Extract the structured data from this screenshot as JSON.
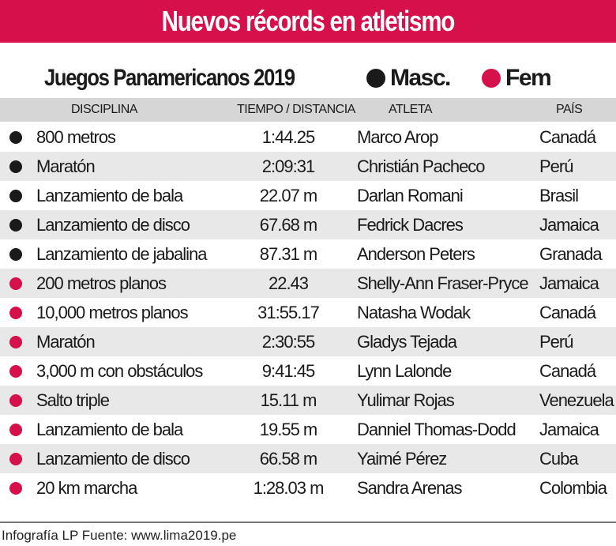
{
  "title": "Nuevos récords en atletismo",
  "subtitle": "Juegos Panamericanos 2019",
  "legend": {
    "masc": "Masc.",
    "fem": "Fem",
    "masc_color": "#1a1a1a",
    "fem_color": "#d6104a"
  },
  "headers": [
    "DISCIPLINA",
    "TIEMPO / DISTANCIA",
    "ATLETA",
    "PAÍS"
  ],
  "rows": [
    {
      "g": "m",
      "disciplina": "800 metros",
      "marca": "1:44.25",
      "atleta": "Marco Arop",
      "pais": "Canadá"
    },
    {
      "g": "m",
      "disciplina": "Maratón",
      "marca": "2:09:31",
      "atleta": "Christián Pacheco",
      "pais": "Perú"
    },
    {
      "g": "m",
      "disciplina": "Lanzamiento de bala",
      "marca": "22.07 m",
      "atleta": "Darlan Romani",
      "pais": "Brasil"
    },
    {
      "g": "m",
      "disciplina": "Lanzamiento de disco",
      "marca": "67.68 m",
      "atleta": "Fedrick Dacres",
      "pais": "Jamaica"
    },
    {
      "g": "m",
      "disciplina": "Lanzamiento de jabalina",
      "marca": "87.31 m",
      "atleta": "Anderson Peters",
      "pais": "Granada"
    },
    {
      "g": "f",
      "disciplina": "200 metros planos",
      "marca": "22.43",
      "atleta": "Shelly-Ann Fraser-Pryce",
      "pais": "Jamaica"
    },
    {
      "g": "f",
      "disciplina": "10,000 metros planos",
      "marca": "31:55.17",
      "atleta": "Natasha Wodak",
      "pais": "Canadá"
    },
    {
      "g": "f",
      "disciplina": "Maratón",
      "marca": "2:30:55",
      "atleta": "Gladys Tejada",
      "pais": "Perú"
    },
    {
      "g": "f",
      "disciplina": "3,000 m con obstáculos",
      "marca": "9:41:45",
      "atleta": "Lynn Lalonde",
      "pais": "Canadá"
    },
    {
      "g": "f",
      "disciplina": "Salto triple",
      "marca": "15.11 m",
      "atleta": "Yulimar Rojas",
      "pais": "Venezuela"
    },
    {
      "g": "f",
      "disciplina": "Lanzamiento de bala",
      "marca": "19.55 m",
      "atleta": "Danniel Thomas-Dodd",
      "pais": "Jamaica"
    },
    {
      "g": "f",
      "disciplina": "Lanzamiento de disco",
      "marca": "66.58 m",
      "atleta": "Yaimé Pérez",
      "pais": "Cuba"
    },
    {
      "g": "f",
      "disciplina": "20 km marcha",
      "marca": "1:28.03 m",
      "atleta": "Sandra Arenas",
      "pais": "Colombia"
    }
  ],
  "footer": "Infografía LP Fuente: www.lima2019.pe"
}
